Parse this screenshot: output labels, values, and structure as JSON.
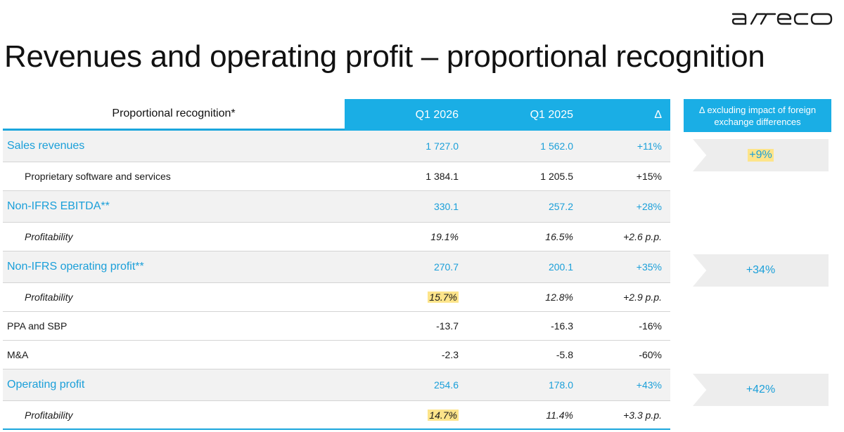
{
  "logo": {
    "text": "asseco",
    "icon": "asseco-logo"
  },
  "title": "Revenues and operating profit – proportional recognition",
  "table": {
    "header": {
      "label": "Proportional recognition*",
      "q1_2026": "Q1 2026",
      "q1_2025": "Q1 2025",
      "delta": "Δ"
    },
    "rows": [
      {
        "label": "Sales revenues",
        "q1_2026": "1 727.0",
        "q1_2025": "1 562.0",
        "delta": "+11%"
      },
      {
        "label": "Proprietary software and services",
        "q1_2026": "1 384.1",
        "q1_2025": "1 205.5",
        "delta": "+15%"
      },
      {
        "label": "Non-IFRS EBITDA**",
        "q1_2026": "330.1",
        "q1_2025": "257.2",
        "delta": "+28%"
      },
      {
        "label": "Profitability",
        "q1_2026": "19.1%",
        "q1_2025": "16.5%",
        "delta": "+2.6 p.p."
      },
      {
        "label": "Non-IFRS operating profit**",
        "q1_2026": "270.7",
        "q1_2025": "200.1",
        "delta": "+35%"
      },
      {
        "label": "Profitability",
        "q1_2026": "15.7%",
        "q1_2025": "12.8%",
        "delta": "+2.9 p.p."
      },
      {
        "label": "PPA and SBP",
        "q1_2026": "-13.7",
        "q1_2025": "-16.3",
        "delta": "-16%"
      },
      {
        "label": "M&A",
        "q1_2026": "-2.3",
        "q1_2025": "-5.8",
        "delta": "-60%"
      },
      {
        "label": "Operating profit",
        "q1_2026": "254.6",
        "q1_2025": "178.0",
        "delta": "+43%"
      },
      {
        "label": "Profitability",
        "q1_2026": "14.7%",
        "q1_2025": "11.4%",
        "delta": "+3.3 p.p."
      }
    ]
  },
  "side": {
    "header": "Δ excluding impact of foreign exchange differences",
    "values": [
      "+9%",
      "+34%",
      "+42%"
    ]
  },
  "colors": {
    "accent": "#1aaee5",
    "highlight": "#fde48a",
    "row_shade": "#f2f2f2"
  }
}
